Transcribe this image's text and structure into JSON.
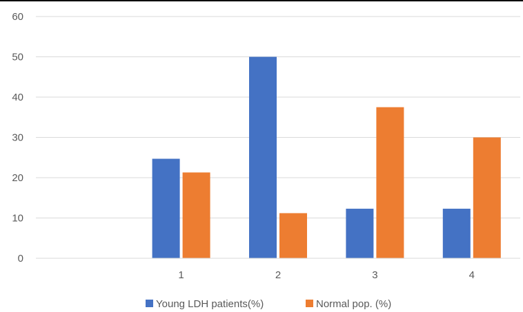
{
  "chart_data": {
    "type": "bar",
    "categories": [
      "",
      "1",
      "2",
      "3",
      "4"
    ],
    "series": [
      {
        "name": "Young LDH patients(%)",
        "color": "#4472C4",
        "values": [
          null,
          24.7,
          50.0,
          12.3,
          12.3
        ]
      },
      {
        "name": "Normal pop. (%)",
        "color": "#ED7D31",
        "values": [
          null,
          21.3,
          11.2,
          37.5,
          30.0
        ]
      }
    ],
    "ylim": [
      0,
      60
    ],
    "yticks": [
      0,
      10,
      20,
      30,
      40,
      50,
      60
    ],
    "grid": true,
    "legend_position": "bottom",
    "title": "",
    "xlabel": "",
    "ylabel": ""
  }
}
